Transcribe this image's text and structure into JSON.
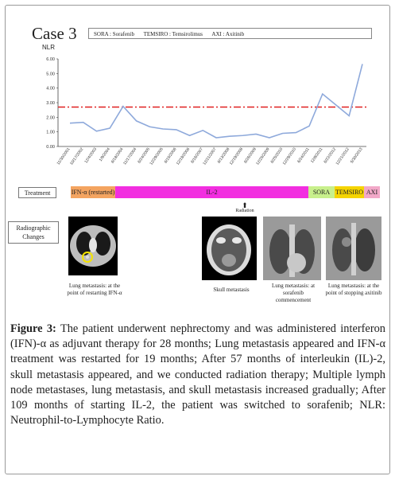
{
  "case_title": "Case 3",
  "legend_items": [
    "SORA : Sorafenib",
    "TEMSIRO : Temsirolimus",
    "AXI : Axitinib"
  ],
  "chart_data": {
    "type": "line",
    "title": "",
    "ylabel": "NLR",
    "ylim": [
      0,
      6
    ],
    "yticks": [
      "0.00",
      "1.00",
      "2.00",
      "3.00",
      "4.00",
      "5.00",
      "6.00"
    ],
    "categories": [
      "11/30/2001",
      "10/17/2002",
      "12/4/2003",
      "1/9/2004",
      "6/18/2004",
      "11/17/2004",
      "6/24/2005",
      "12/29/2005",
      "6/15/2006",
      "12/18/2006",
      "6/16/2007",
      "12/21/2007",
      "6/13/2008",
      "12/19/2008",
      "6/26/2009",
      "12/25/2009",
      "6/25/2010",
      "12/28/2010",
      "6/24/2011",
      "12/8/2011",
      "6/22/2012",
      "12/21/2012",
      "5/30/2013"
    ],
    "series": [
      {
        "values": [
          1.6,
          1.65,
          1.05,
          1.25,
          2.75,
          1.75,
          1.35,
          1.2,
          1.15,
          0.75,
          1.1,
          0.6,
          0.7,
          0.75,
          0.85,
          0.6,
          0.9,
          0.95,
          1.4,
          3.6,
          2.85,
          2.1,
          5.65
        ],
        "color": "#8ea9db"
      }
    ],
    "threshold": {
      "value": 2.7,
      "color": "#e02020"
    }
  },
  "treatment": {
    "label": "Treatment",
    "bars": [
      {
        "text": "IFN-α (restarted)",
        "color": "#f4a460"
      },
      {
        "text": "IL-2",
        "color": "#f22ee0"
      },
      {
        "text": "SORA",
        "color": "#c8f08c"
      },
      {
        "text": "TEMSIRO",
        "color": "#f5d400"
      },
      {
        "text": "AXI",
        "color": "#f2a8c8"
      }
    ],
    "radiation": "Radiation"
  },
  "radiographic": {
    "label": "Radiographic Changes",
    "captions": [
      "Lung metastasis: at the point of restarting IFN-α",
      "Skull metastasis",
      "Lung metastasis: at sorafenib commencement",
      "Lung metastasis: at the point of stopping axitinib"
    ]
  },
  "caption": {
    "label": "Figure 3:",
    "text": "The patient underwent nephrectomy and was administered interferon (IFN)-α as adjuvant therapy for 28 months; Lung metastasis appeared and IFN-α treatment was restarted for 19 months; After 57 months of interleukin (IL)-2, skull metastasis appeared, and we conducted radiation therapy; Multiple lymph node metastases, lung metastasis, and skull metastasis increased gradually; After 109 months of starting IL-2, the patient was switched to sorafenib; NLR: Neutrophil-to-Lymphocyte Ratio."
  }
}
